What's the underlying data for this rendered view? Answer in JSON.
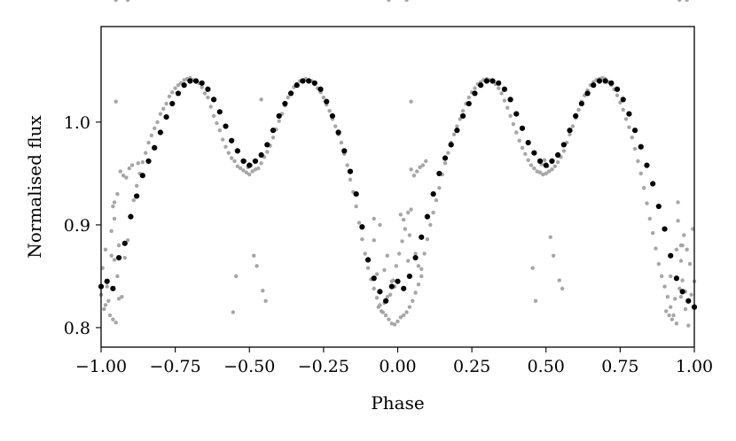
{
  "chart_data": {
    "type": "scatter",
    "title": "",
    "xlabel": "Phase",
    "ylabel": "Normalised flux",
    "xlim": [
      -1.0,
      1.0
    ],
    "ylim": [
      0.781,
      1.093
    ],
    "grid": false,
    "legend": "none",
    "x_ticks": [
      -1.0,
      -0.75,
      -0.5,
      -0.25,
      0.0,
      0.25,
      0.5,
      0.75,
      1.0
    ],
    "x_tick_labels": [
      "−1.00",
      "−0.75",
      "−0.50",
      "−0.25",
      "0.00",
      "0.25",
      "0.50",
      "0.75",
      "1.00"
    ],
    "y_ticks": [
      0.8,
      0.9,
      1.0
    ],
    "y_tick_labels": [
      "0.8",
      "0.9",
      "1.0"
    ],
    "colors": {
      "raw": "#a6a6a6",
      "binned": "#000000",
      "frame": "#000000"
    },
    "series": [
      {
        "role": "raw",
        "points_x": [
          -1.0,
          -0.99,
          -0.98,
          -0.97,
          -0.96,
          -0.95,
          -0.94,
          -0.93,
          -0.92,
          -0.91,
          -0.9,
          -0.89,
          -0.88,
          -0.87,
          -0.86,
          -0.85,
          -0.84,
          -0.83,
          -0.82,
          -0.81,
          -0.8,
          -0.79,
          -0.78,
          -0.77,
          -0.76,
          -0.75,
          -0.74,
          -0.73,
          -0.72,
          -0.71,
          -0.7,
          -0.69,
          -0.68,
          -0.67,
          -0.66,
          -0.65,
          -0.64,
          -0.63,
          -0.62,
          -0.61,
          -0.6,
          -0.59,
          -0.58,
          -0.57,
          -0.56,
          -0.55,
          -0.54,
          -0.53,
          -0.52,
          -0.51,
          -0.5,
          -0.49,
          -0.48,
          -0.47,
          -0.46,
          -0.45,
          -0.44,
          -0.43,
          -0.42,
          -0.41,
          -0.4,
          -0.39,
          -0.38,
          -0.37,
          -0.36,
          -0.35,
          -0.34,
          -0.33,
          -0.32,
          -0.31,
          -0.3,
          -0.29,
          -0.28,
          -0.27,
          -0.26,
          -0.25,
          -0.24,
          -0.23,
          -0.22,
          -0.21,
          -0.2,
          -0.19,
          -0.18,
          -0.17,
          -0.16,
          -0.15,
          -0.14,
          -0.13,
          -0.12,
          -0.11,
          -0.1,
          -0.09,
          -0.08,
          -0.07,
          -0.06,
          -0.05,
          -0.04,
          -0.03,
          -0.02,
          -0.01,
          0.0,
          0.01,
          0.02,
          0.03,
          0.04,
          0.05,
          0.06,
          0.07,
          0.08,
          0.09,
          0.1,
          0.11,
          0.12,
          0.13,
          0.14,
          0.15,
          0.16,
          0.17,
          0.18,
          0.19,
          0.2,
          0.21,
          0.22,
          0.23,
          0.24,
          0.25,
          0.26,
          0.27,
          0.28,
          0.29,
          0.3,
          0.31,
          0.32,
          0.33,
          0.34,
          0.35,
          0.36,
          0.37,
          0.38,
          0.39,
          0.4,
          0.41,
          0.42,
          0.43,
          0.44,
          0.45,
          0.46,
          0.47,
          0.48,
          0.49,
          0.5,
          0.51,
          0.52,
          0.53,
          0.54,
          0.55,
          0.56,
          0.57,
          0.58,
          0.59,
          0.6,
          0.61,
          0.62,
          0.63,
          0.64,
          0.65,
          0.66,
          0.67,
          0.68,
          0.69,
          0.7,
          0.71,
          0.72,
          0.73,
          0.74,
          0.75,
          0.76,
          0.77,
          0.78,
          0.79,
          0.8,
          0.81,
          0.82,
          0.83,
          0.84,
          0.85,
          0.86,
          0.87,
          0.88,
          0.89,
          0.9,
          0.91,
          0.92,
          0.93,
          0.94,
          0.95,
          0.96,
          0.97,
          0.98,
          0.99,
          1.0,
          -0.995,
          -0.985,
          -0.965,
          -0.955,
          -0.945,
          -0.935,
          -0.925,
          -0.915,
          -0.905,
          -0.895,
          -0.875,
          -0.515,
          -0.505,
          -0.495,
          -0.485,
          -0.475,
          -0.545,
          -0.455,
          -0.445,
          -0.555,
          -0.065,
          -0.055,
          -0.045,
          -0.035,
          -0.025,
          -0.015,
          -0.005,
          0.005,
          0.015,
          0.025,
          0.035,
          0.045,
          0.055,
          0.065,
          0.075,
          0.085,
          0.095,
          0.485,
          0.495,
          0.505,
          0.515,
          0.525,
          0.455,
          0.545,
          0.555,
          0.465,
          0.905,
          0.915,
          0.925,
          0.935,
          0.945,
          0.955,
          0.965,
          0.975,
          0.985,
          0.995,
          -0.96,
          -0.94,
          -0.08,
          -0.06,
          0.04,
          0.06,
          0.92,
          0.96,
          -0.955,
          -0.045,
          0.045,
          0.955,
          -0.945,
          -0.07,
          0.07,
          0.945,
          -0.955,
          -0.08,
          -0.035,
          0.035,
          0.08,
          0.955,
          0.97,
          -0.985,
          -0.975,
          -0.965,
          0.94,
          0.01,
          -0.01,
          -0.02,
          0.02,
          -0.95,
          0.95,
          -0.91,
          -0.03,
          0.03,
          0.975
        ],
        "points_y": [
          0.832,
          0.818,
          0.84,
          0.812,
          0.808,
          0.805,
          0.828,
          0.83,
          0.868,
          0.885,
          0.908,
          0.924,
          0.938,
          0.95,
          0.961,
          0.97,
          0.98,
          0.987,
          0.994,
          1.0,
          1.008,
          1.013,
          1.018,
          1.025,
          1.029,
          1.033,
          1.036,
          1.038,
          1.041,
          1.042,
          1.043,
          1.041,
          1.04,
          1.038,
          1.034,
          1.028,
          1.024,
          1.015,
          1.006,
          0.999,
          0.992,
          0.983,
          0.976,
          0.97,
          0.965,
          0.962,
          0.957,
          0.955,
          0.953,
          0.951,
          0.949,
          0.952,
          0.954,
          0.955,
          0.96,
          0.966,
          0.971,
          0.977,
          0.985,
          0.993,
          1.001,
          1.008,
          1.016,
          1.024,
          1.029,
          1.034,
          1.037,
          1.04,
          1.041,
          1.042,
          1.041,
          1.04,
          1.037,
          1.033,
          1.029,
          1.024,
          1.017,
          1.011,
          1.003,
          0.996,
          0.988,
          0.98,
          0.969,
          0.958,
          0.944,
          0.932,
          0.918,
          0.902,
          0.886,
          0.872,
          0.858,
          0.847,
          0.838,
          0.829,
          0.822,
          0.815,
          0.812,
          0.808,
          0.804,
          0.803,
          0.806,
          0.81,
          0.812,
          0.815,
          0.82,
          0.826,
          0.834,
          0.842,
          0.857,
          0.872,
          0.886,
          0.9,
          0.912,
          0.924,
          0.936,
          0.949,
          0.96,
          0.97,
          0.98,
          0.988,
          0.996,
          1.003,
          1.011,
          1.018,
          1.024,
          1.029,
          1.033,
          1.037,
          1.039,
          1.041,
          1.042,
          1.041,
          1.04,
          1.037,
          1.033,
          1.028,
          1.021,
          1.014,
          1.006,
          0.998,
          0.99,
          0.982,
          0.975,
          0.969,
          0.963,
          0.958,
          0.955,
          0.952,
          0.951,
          0.949,
          0.95,
          0.952,
          0.954,
          0.957,
          0.961,
          0.966,
          0.972,
          0.98,
          0.988,
          0.996,
          1.004,
          1.012,
          1.02,
          1.026,
          1.031,
          1.036,
          1.039,
          1.041,
          1.042,
          1.043,
          1.042,
          1.039,
          1.036,
          1.032,
          1.026,
          1.019,
          1.012,
          1.003,
          0.995,
          0.985,
          0.974,
          0.962,
          0.95,
          0.936,
          0.921,
          0.906,
          0.892,
          0.877,
          0.862,
          0.85,
          0.84,
          0.83,
          0.82,
          0.812,
          0.804,
          0.838,
          0.846,
          0.818,
          0.802,
          0.832,
          0.845,
          0.858,
          0.876,
          0.894,
          0.906,
          0.93,
          0.952,
          0.948,
          0.946,
          0.955,
          0.958,
          0.96,
          0.962,
          0.956,
          0.958,
          0.87,
          0.86,
          0.85,
          0.836,
          0.826,
          0.815,
          0.82,
          0.816,
          0.824,
          0.83,
          0.832,
          0.846,
          0.86,
          0.872,
          0.884,
          0.896,
          0.912,
          0.954,
          0.948,
          0.952,
          0.956,
          0.958,
          0.962,
          0.959,
          0.963,
          0.957,
          0.888,
          0.87,
          0.858,
          0.846,
          0.838,
          0.826,
          0.816,
          0.812,
          0.808,
          0.828,
          0.922,
          0.88,
          0.89,
          0.876,
          0.862,
          0.896,
          0.918,
          0.88,
          0.906,
          0.9,
          0.89,
          0.872,
          0.85,
          0.88,
          0.866,
          0.856,
          0.915,
          0.865,
          0.85,
          0.852,
          0.86,
          0.904,
          0.922,
          0.885,
          0.87,
          0.865,
          0.85,
          0.83,
          0.835,
          0.822,
          0.826,
          0.87,
          0.876,
          0.91,
          0.84,
          0.845,
          0.905
        ],
        "outliers": [
          [
            -0.95,
            1.02
          ],
          [
            0.045,
            1.02
          ],
          [
            -0.46,
            1.022
          ]
        ]
      },
      {
        "role": "binned",
        "x": [
          -1.0,
          -0.98,
          -0.96,
          -0.94,
          -0.92,
          -0.9,
          -0.88,
          -0.86,
          -0.84,
          -0.82,
          -0.8,
          -0.78,
          -0.76,
          -0.74,
          -0.72,
          -0.7,
          -0.68,
          -0.66,
          -0.64,
          -0.62,
          -0.6,
          -0.58,
          -0.56,
          -0.54,
          -0.52,
          -0.5,
          -0.48,
          -0.46,
          -0.44,
          -0.42,
          -0.4,
          -0.38,
          -0.36,
          -0.34,
          -0.32,
          -0.3,
          -0.28,
          -0.26,
          -0.24,
          -0.22,
          -0.2,
          -0.18,
          -0.16,
          -0.14,
          -0.12,
          -0.1,
          -0.08,
          -0.06,
          -0.04,
          -0.02,
          0.0,
          0.02,
          0.04,
          0.06,
          0.08,
          0.1,
          0.12,
          0.14,
          0.16,
          0.18,
          0.2,
          0.22,
          0.24,
          0.26,
          0.28,
          0.3,
          0.32,
          0.34,
          0.36,
          0.38,
          0.4,
          0.42,
          0.44,
          0.46,
          0.48,
          0.5,
          0.52,
          0.54,
          0.56,
          0.58,
          0.6,
          0.62,
          0.64,
          0.66,
          0.68,
          0.7,
          0.72,
          0.74,
          0.76,
          0.78,
          0.8,
          0.82,
          0.84,
          0.86,
          0.88,
          0.9,
          0.92,
          0.94,
          0.96,
          0.98,
          1.0
        ],
        "y": [
          0.84,
          0.845,
          0.838,
          0.868,
          0.882,
          0.908,
          0.928,
          0.948,
          0.962,
          0.975,
          0.99,
          1.005,
          1.018,
          1.028,
          1.036,
          1.04,
          1.04,
          1.038,
          1.032,
          1.022,
          1.01,
          0.996,
          0.982,
          0.972,
          0.962,
          0.958,
          0.962,
          0.968,
          0.978,
          0.992,
          1.006,
          1.018,
          1.028,
          1.036,
          1.04,
          1.04,
          1.038,
          1.032,
          1.02,
          1.006,
          0.99,
          0.972,
          0.952,
          0.93,
          0.898,
          0.866,
          0.848,
          0.835,
          0.826,
          0.84,
          0.845,
          0.838,
          0.85,
          0.868,
          0.888,
          0.908,
          0.93,
          0.95,
          0.965,
          0.978,
          0.992,
          1.006,
          1.018,
          1.028,
          1.036,
          1.04,
          1.04,
          1.038,
          1.032,
          1.022,
          1.008,
          0.994,
          0.98,
          0.97,
          0.962,
          0.958,
          0.962,
          0.968,
          0.978,
          0.992,
          1.006,
          1.018,
          1.028,
          1.036,
          1.04,
          1.04,
          1.038,
          1.032,
          1.022,
          1.008,
          0.992,
          0.976,
          0.958,
          0.94,
          0.918,
          0.896,
          0.87,
          0.848,
          0.835,
          0.826,
          0.82
        ]
      }
    ]
  }
}
